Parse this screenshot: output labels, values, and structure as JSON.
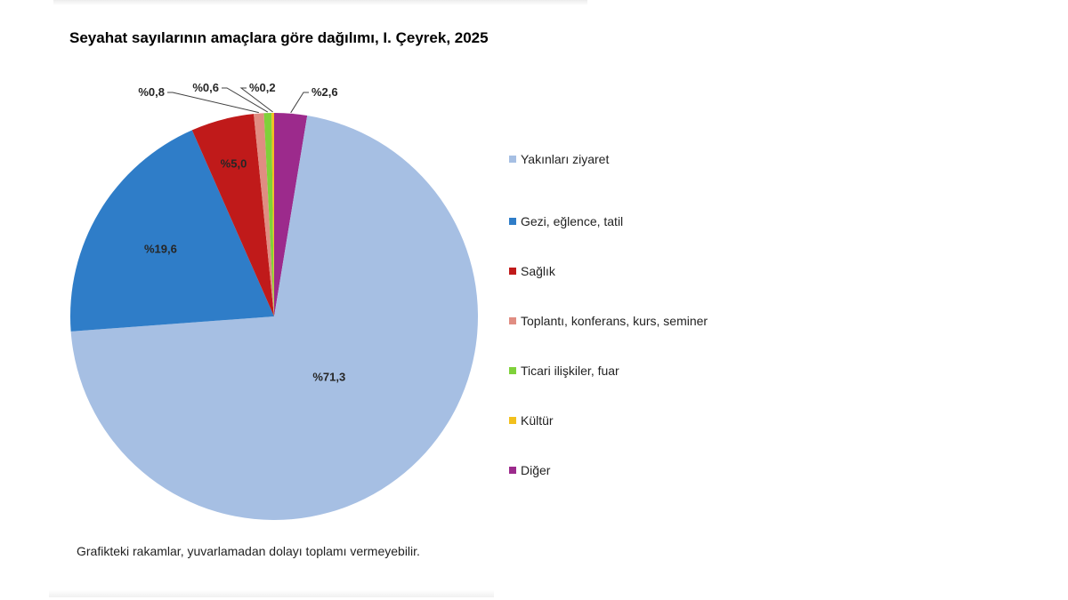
{
  "chart_data": {
    "type": "pie",
    "title": "Seyahat sayılarının amaçlara göre dağılımı, I. Çeyrek, 2025",
    "start_category": "Diğer",
    "direction": "clockwise",
    "categories": [
      "Yakınları ziyaret",
      "Gezi, eğlence, tatil",
      "Sağlık",
      "Toplantı, konferans, kurs, seminer",
      "Ticari ilişkiler, fuar",
      "Kültür",
      "Diğer"
    ],
    "values": [
      71.3,
      19.6,
      5.0,
      0.8,
      0.6,
      0.2,
      2.6
    ],
    "data_labels": [
      "%71,3",
      "%19,6",
      "%5,0",
      "%0,8",
      "%0,6",
      "%0,2",
      "%2,6"
    ],
    "colors": [
      "#a6bfe3",
      "#2f7dc8",
      "#c01a1a",
      "#e08d82",
      "#7fd13a",
      "#f2c01d",
      "#9c2a8c"
    ],
    "legend_position": "right",
    "note": "Grafikteki rakamlar, yuvarlamadan dolayı toplamı vermeyebilir."
  }
}
